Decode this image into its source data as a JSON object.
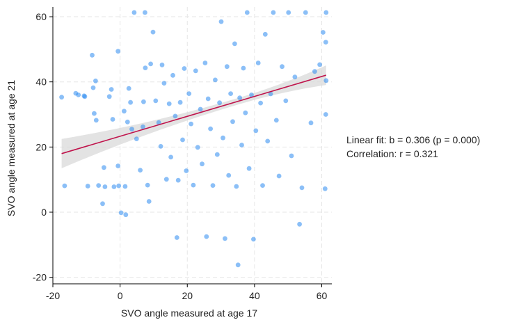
{
  "chart_data": {
    "type": "scatter",
    "title": "",
    "xlabel": "SVO angle measured at age 17",
    "ylabel": "SVO angle measured at age 21",
    "xlim": [
      -20,
      63
    ],
    "ylim": [
      -22,
      63
    ],
    "xticks": [
      -20,
      0,
      20,
      40,
      60
    ],
    "yticks": [
      -20,
      0,
      20,
      40,
      60
    ],
    "grid": true,
    "colors": {
      "points": "#2b8af0",
      "fit_line": "#c0144c",
      "confidence_band": "#d9d9d9",
      "grid": "#e6e6e6"
    },
    "fit": {
      "intercept": 23.3,
      "slope": 0.306,
      "x_range": [
        -17.4,
        61.3
      ],
      "band_halfwidth_left": 4.5,
      "band_halfwidth_center": 1.0,
      "band_halfwidth_right": 3.0,
      "band_center_x": 35
    },
    "points": [
      [
        -17.4,
        35.3
      ],
      [
        -16.5,
        8.1
      ],
      [
        -13.2,
        36.5
      ],
      [
        -12.4,
        36
      ],
      [
        -10.7,
        35.7
      ],
      [
        -10.5,
        35.5
      ],
      [
        -9.6,
        8
      ],
      [
        -8.3,
        48.2
      ],
      [
        -8,
        38.2
      ],
      [
        -7.7,
        30.3
      ],
      [
        -7.3,
        40.3
      ],
      [
        -7.1,
        28.2
      ],
      [
        -6.4,
        8.2
      ],
      [
        -5.2,
        2.6
      ],
      [
        -4.8,
        13.7
      ],
      [
        -4.5,
        7.8
      ],
      [
        -3.2,
        35.5
      ],
      [
        -2.6,
        37.7
      ],
      [
        -2.2,
        28.5
      ],
      [
        -1.8,
        7.8
      ],
      [
        -0.6,
        49.4
      ],
      [
        -0.6,
        14.2
      ],
      [
        -0.4,
        8.1
      ],
      [
        0.3,
        -0.2
      ],
      [
        1.2,
        31
      ],
      [
        1.5,
        7.9
      ],
      [
        1.7,
        -0.8
      ],
      [
        2.2,
        27.7
      ],
      [
        2.6,
        38
      ],
      [
        3.1,
        33.7
      ],
      [
        3.5,
        25.5
      ],
      [
        4.2,
        61.3
      ],
      [
        4.9,
        22.5
      ],
      [
        6,
        12.9
      ],
      [
        6.8,
        26.2
      ],
      [
        7,
        33.9
      ],
      [
        7.4,
        61.3
      ],
      [
        7.5,
        44.3
      ],
      [
        8.2,
        8.3
      ],
      [
        8.6,
        3.3
      ],
      [
        9.1,
        45.5
      ],
      [
        9.8,
        55.3
      ],
      [
        10.6,
        34.2
      ],
      [
        11.5,
        27.5
      ],
      [
        12.1,
        20.2
      ],
      [
        12.5,
        45.2
      ],
      [
        13.1,
        39.6
      ],
      [
        13.8,
        10.1
      ],
      [
        14.6,
        33.3
      ],
      [
        15.1,
        16.9
      ],
      [
        15.7,
        42
      ],
      [
        16.4,
        29.5
      ],
      [
        16.9,
        -7.8
      ],
      [
        17.3,
        9.8
      ],
      [
        17.9,
        33.7
      ],
      [
        18.6,
        22.2
      ],
      [
        19.1,
        44.1
      ],
      [
        19.7,
        12.7
      ],
      [
        20.5,
        36.4
      ],
      [
        21.1,
        27.1
      ],
      [
        21.8,
        8.3
      ],
      [
        22.5,
        43.4
      ],
      [
        23.1,
        19.9
      ],
      [
        23.9,
        31.6
      ],
      [
        24.4,
        14.8
      ],
      [
        25.3,
        45.8
      ],
      [
        25.7,
        -7.5
      ],
      [
        26.2,
        34.8
      ],
      [
        26.9,
        25.6
      ],
      [
        27.6,
        8.2
      ],
      [
        28.3,
        40.6
      ],
      [
        28.9,
        17.7
      ],
      [
        29.6,
        33.6
      ],
      [
        30.1,
        58.5
      ],
      [
        30.6,
        22.8
      ],
      [
        31.2,
        -8.1
      ],
      [
        31.8,
        44.7
      ],
      [
        32.3,
        11.3
      ],
      [
        32.9,
        36.4
      ],
      [
        33.5,
        27.8
      ],
      [
        34.1,
        51.7
      ],
      [
        34.6,
        7.9
      ],
      [
        35.1,
        -16.2
      ],
      [
        35.6,
        35.1
      ],
      [
        36.2,
        20.6
      ],
      [
        36.7,
        44.2
      ],
      [
        37.3,
        30.5
      ],
      [
        37.8,
        61.3
      ],
      [
        38.4,
        13.4
      ],
      [
        39.1,
        36
      ],
      [
        39.7,
        -8.3
      ],
      [
        40.4,
        25
      ],
      [
        41.1,
        45.8
      ],
      [
        41.8,
        33.5
      ],
      [
        42.4,
        8.2
      ],
      [
        43.2,
        54.6
      ],
      [
        43.9,
        21.8
      ],
      [
        44.8,
        36.3
      ],
      [
        45.6,
        61.3
      ],
      [
        46.5,
        28.2
      ],
      [
        47.3,
        11.1
      ],
      [
        48.2,
        44.7
      ],
      [
        49.3,
        34.2
      ],
      [
        50.1,
        61.3
      ],
      [
        51,
        17.3
      ],
      [
        52,
        41.5
      ],
      [
        53.4,
        -3.7
      ],
      [
        54.1,
        7.5
      ],
      [
        55.2,
        61.3
      ],
      [
        56.8,
        27.4
      ],
      [
        57.9,
        43.2
      ],
      [
        59.4,
        45.3
      ],
      [
        60.4,
        55.2
      ],
      [
        61,
        7.2
      ],
      [
        61.2,
        30
      ],
      [
        61.3,
        61.3
      ],
      [
        61.3,
        40.4
      ],
      [
        61.2,
        52.2
      ]
    ]
  },
  "annotations": {
    "fit_text": "Linear fit: b = 0.306 (p = 0.000)",
    "corr_text": "Correlation: r = 0.321"
  }
}
